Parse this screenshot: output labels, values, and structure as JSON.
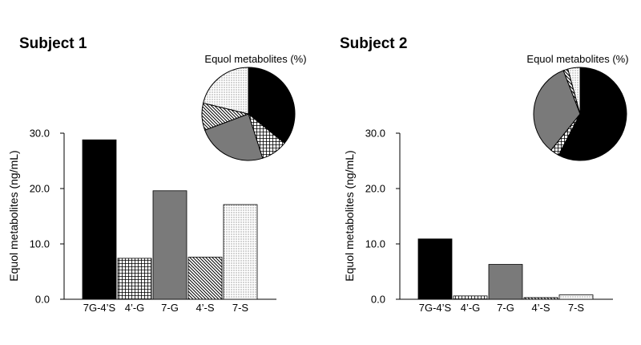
{
  "chart_data": [
    {
      "type": "bar",
      "title": "Subject 1",
      "xlabel": "",
      "ylabel": "Equol metabolites (ng/mL)",
      "ylim": [
        0,
        30
      ],
      "yticks": [
        "0.0",
        "10.0",
        "20.0",
        "30.0"
      ],
      "categories": [
        "7G-4’S",
        "4’-G",
        "7-G",
        "4’-S",
        "7-S"
      ],
      "values": [
        28.8,
        7.4,
        19.6,
        7.6,
        17.1
      ],
      "fills": [
        "solid-black",
        "grid",
        "solid-gray",
        "diagonal",
        "dots"
      ],
      "pie": {
        "type": "pie",
        "title": "Equol metabolites (%)",
        "values": [
          36.1,
          9.3,
          24.5,
          9.5,
          21.4
        ],
        "fills": [
          "solid-black",
          "grid",
          "solid-gray",
          "diagonal",
          "dots"
        ]
      }
    },
    {
      "type": "bar",
      "title": "Subject 2",
      "xlabel": "",
      "ylabel": "Equol metabolites (ng/mL)",
      "ylim": [
        0,
        30
      ],
      "yticks": [
        "0.0",
        "10.0",
        "20.0",
        "30.0"
      ],
      "categories": [
        "7G-4’S",
        "4’-G",
        "7-G",
        "4’-S",
        "7-S"
      ],
      "values": [
        10.9,
        0.6,
        6.3,
        0.3,
        0.8
      ],
      "fills": [
        "solid-black",
        "grid",
        "solid-gray",
        "diagonal",
        "dots"
      ],
      "pie": {
        "type": "pie",
        "title": "Equol metabolites (%)",
        "values": [
          57.1,
          3.1,
          33.0,
          1.6,
          4.2
        ],
        "fills": [
          "solid-black",
          "grid",
          "solid-gray",
          "diagonal",
          "dots"
        ]
      }
    }
  ],
  "colors": {
    "solid-black": "#000000",
    "solid-gray": "#7a7a7a",
    "pattern-ink": "#000000",
    "background": "#ffffff"
  }
}
